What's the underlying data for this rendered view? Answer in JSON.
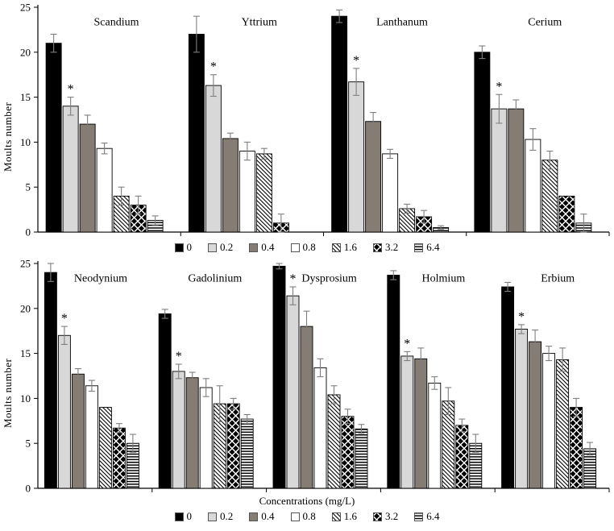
{
  "colors": {
    "black": "#000000",
    "light_gray": "#d8d8d8",
    "dark_gray": "#857c74",
    "white": "#ffffff",
    "error_bar": "#7f7f7f",
    "axis": "#000000"
  },
  "bar_styles": [
    {
      "label": "0",
      "fill": "#000000",
      "pattern": "solid",
      "name": "black"
    },
    {
      "label": "0.2",
      "fill": "#d8d8d8",
      "pattern": "solid",
      "name": "light-gray"
    },
    {
      "label": "0.4",
      "fill": "#857c74",
      "pattern": "solid",
      "name": "dark-gray"
    },
    {
      "label": "0.8",
      "fill": "#ffffff",
      "pattern": "solid",
      "name": "white"
    },
    {
      "label": "1.6",
      "fill": "#ffffff",
      "pattern": "diagonal-hatch",
      "name": "diagonal-hatch"
    },
    {
      "label": "3.2",
      "fill": "#ffffff",
      "pattern": "diamond-grid",
      "name": "diamond-grid"
    },
    {
      "label": "6.4",
      "fill": "#ffffff",
      "pattern": "horizontal-stripes",
      "name": "horizontal-stripes"
    }
  ],
  "chart_data": [
    {
      "type": "bar",
      "panel": "top",
      "ylabel": "Moults number",
      "xlabel": "",
      "ylim": [
        0,
        25
      ],
      "yticks": [
        0,
        5,
        10,
        15,
        20,
        25
      ],
      "grid": false,
      "legend_position": "bottom",
      "legend_labels": [
        "0",
        "0.2",
        "0.4",
        "0.8",
        "1.6",
        "3.2",
        "6.4"
      ],
      "groups": [
        {
          "name": "Scandium",
          "values": [
            21,
            14,
            12,
            9.3,
            4,
            3,
            1.3
          ],
          "errors": [
            1,
            1,
            1,
            0.6,
            1,
            1,
            0.5
          ],
          "star_index": 1
        },
        {
          "name": "Yttrium",
          "values": [
            22,
            16.3,
            10.4,
            9,
            8.7,
            1,
            0
          ],
          "errors": [
            2,
            1.2,
            0.6,
            1,
            0.6,
            1,
            0
          ],
          "star_index": 1
        },
        {
          "name": "Lanthanum",
          "values": [
            24,
            16.7,
            12.3,
            8.7,
            2.6,
            1.7,
            0.5
          ],
          "errors": [
            0.7,
            1.5,
            1,
            0.5,
            0.5,
            0.7,
            0.2
          ],
          "star_index": 1
        },
        {
          "name": "Cerium",
          "values": [
            20,
            13.7,
            13.7,
            10.3,
            8,
            4,
            1
          ],
          "errors": [
            0.7,
            1.6,
            1,
            1.2,
            1,
            0,
            1
          ],
          "star_index": 1
        }
      ]
    },
    {
      "type": "bar",
      "panel": "bottom",
      "ylabel": "Moults number",
      "xlabel": "Concentrations (mg/L)",
      "ylim": [
        0,
        25
      ],
      "yticks": [
        0,
        5,
        10,
        15,
        20,
        25
      ],
      "grid": false,
      "legend_position": "bottom",
      "legend_labels": [
        "0",
        "0.2",
        "0.4",
        "0.8",
        "1.6",
        "3.2",
        "6.4"
      ],
      "groups": [
        {
          "name": "Neodynium",
          "values": [
            24,
            17,
            12.7,
            11.4,
            9,
            6.7,
            5
          ],
          "errors": [
            1,
            1,
            0.6,
            0.6,
            0,
            0.5,
            1
          ],
          "star_index": 1
        },
        {
          "name": "Gadolinium",
          "values": [
            19.4,
            13,
            12.3,
            11.2,
            9.4,
            9.4,
            7.7
          ],
          "errors": [
            0.5,
            0.8,
            0.6,
            1,
            2,
            0.6,
            0.5
          ],
          "star_index": 1
        },
        {
          "name": "Dysprosium",
          "values": [
            24.7,
            21.4,
            18,
            13.4,
            10.4,
            8,
            6.6
          ],
          "errors": [
            0.3,
            1,
            1.7,
            1,
            1,
            0.8,
            0.5
          ],
          "star_index": 1
        },
        {
          "name": "Holmium",
          "values": [
            23.7,
            14.7,
            14.4,
            11.7,
            9.7,
            7,
            5
          ],
          "errors": [
            0.5,
            0.5,
            1.2,
            0.7,
            1.5,
            0.7,
            1
          ],
          "star_index": 1
        },
        {
          "name": "Erbium",
          "values": [
            22.4,
            17.7,
            16.3,
            15,
            14.3,
            9,
            4.4
          ],
          "errors": [
            0.5,
            0.5,
            1.3,
            0.8,
            1.3,
            1,
            0.7
          ],
          "star_index": 1
        }
      ]
    }
  ]
}
